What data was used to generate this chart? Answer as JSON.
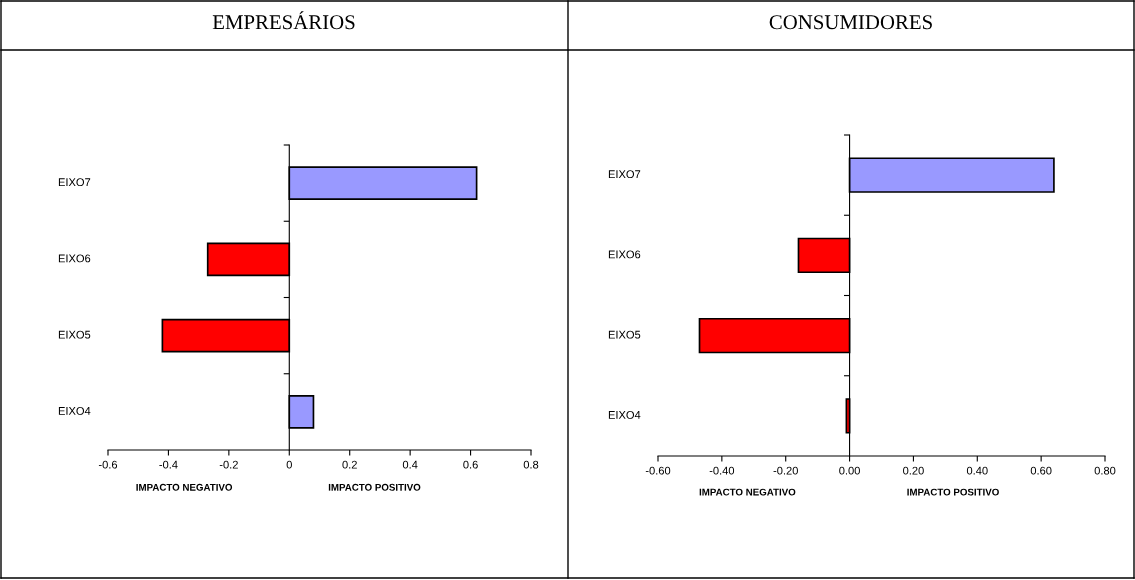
{
  "chart_data": [
    {
      "type": "bar",
      "orientation": "horizontal",
      "title": "EMPRESÁRIOS",
      "categories": [
        "EIXO7",
        "EIXO6",
        "EIXO5",
        "EIXO4"
      ],
      "values": [
        0.62,
        -0.27,
        -0.42,
        0.08
      ],
      "colors": [
        "#9999ff",
        "#ff0000",
        "#ff0000",
        "#9999ff"
      ],
      "xlim": [
        -0.6,
        0.8
      ],
      "xticks": [
        -0.6,
        -0.4,
        -0.2,
        0,
        0.2,
        0.4,
        0.6,
        0.8
      ],
      "annotations": [
        "IMPACTO NEGATIVO",
        "IMPACTO POSITIVO"
      ],
      "legend": false
    },
    {
      "type": "bar",
      "orientation": "horizontal",
      "title": "CONSUMIDORES",
      "categories": [
        "EIXO7",
        "EIXO6",
        "EIXO5",
        "EIXO4"
      ],
      "values": [
        0.64,
        -0.16,
        -0.47,
        -0.01
      ],
      "colors": [
        "#9999ff",
        "#ff0000",
        "#ff0000",
        "#ff0000"
      ],
      "xlim": [
        -0.6,
        0.8
      ],
      "xticks": [
        {
          "value": -0.6,
          "label": "-0.60"
        },
        {
          "value": -0.4,
          "label": "-0.40"
        },
        {
          "value": -0.2,
          "label": "-0.20"
        },
        {
          "value": 0,
          "label": "0.00"
        },
        {
          "value": 0.2,
          "label": "0.20"
        },
        {
          "value": 0.4,
          "label": "0.40"
        },
        {
          "value": 0.6,
          "label": "0.60"
        },
        {
          "value": 0.8,
          "label": "0.80"
        }
      ],
      "annotations": [
        "IMPACTO NEGATIVO",
        "IMPACTO POSITIVO"
      ],
      "legend": false
    }
  ]
}
